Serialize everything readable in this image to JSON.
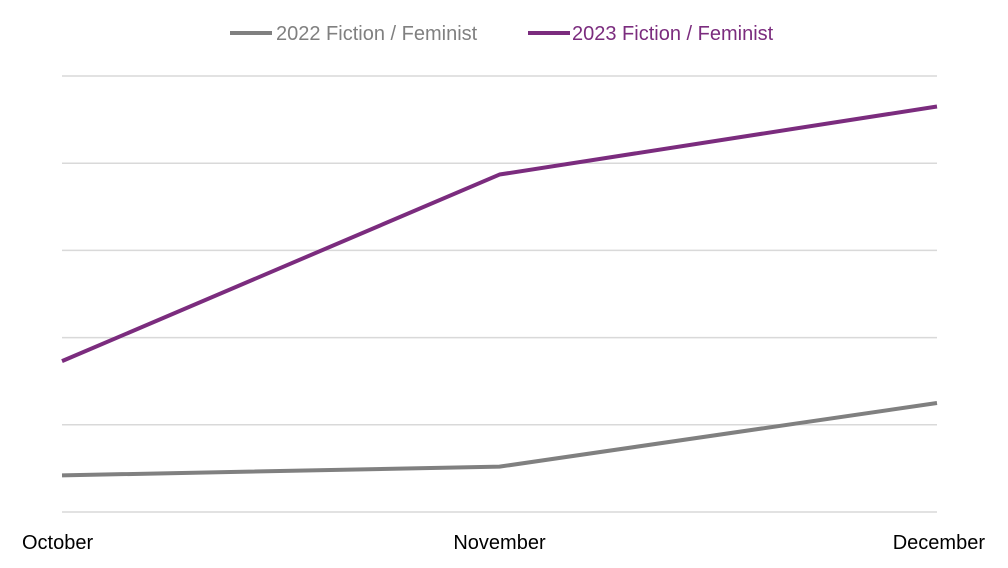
{
  "chart_data": {
    "type": "line",
    "categories": [
      "October",
      "November",
      "December"
    ],
    "series": [
      {
        "name": "2022 Fiction / Feminist",
        "values": [
          0.42,
          0.52,
          1.25
        ],
        "color": "#808080"
      },
      {
        "name": "2023 Fiction / Feminist",
        "values": [
          1.73,
          3.87,
          4.65
        ],
        "color": "#7b2c7e"
      }
    ],
    "title": "",
    "xlabel": "",
    "ylabel": "",
    "ylim": [
      0,
      5
    ],
    "yticks": [
      0,
      1,
      2,
      3,
      4,
      5
    ],
    "grid": true,
    "legend": "top-center"
  }
}
